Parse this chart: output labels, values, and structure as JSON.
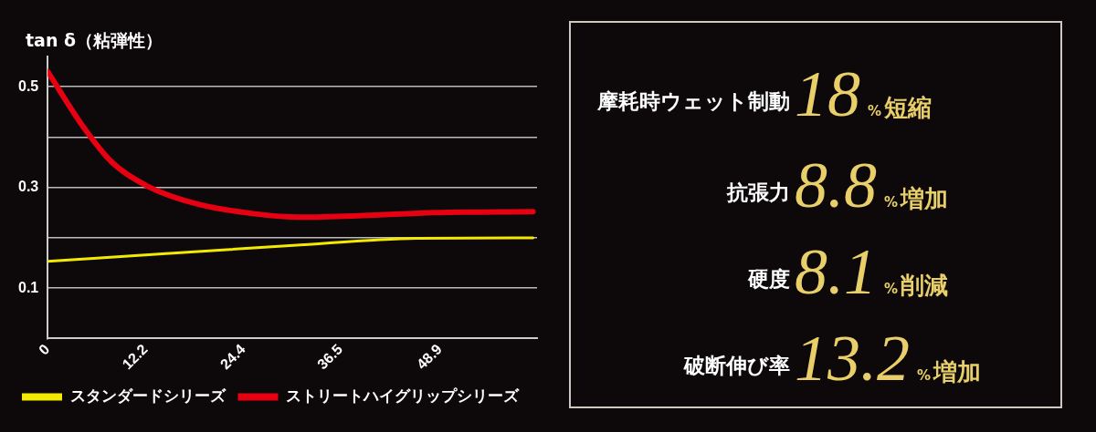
{
  "chart_data": [
    {
      "type": "line",
      "ylabel": "tan δ（粘弾性）",
      "xlim": [
        0,
        61
      ],
      "xticks": [
        0,
        12.2,
        24.4,
        36.5,
        48.9
      ],
      "ylim": [
        0,
        0.56
      ],
      "yticks": [
        0.1,
        {
          "value": 0.2,
          "label": null
        },
        0.3,
        {
          "value": 0.4,
          "label": null
        },
        0.5
      ],
      "grid": "y",
      "legend": "bottom",
      "marker": "none",
      "series": [
        {
          "name": "スタンダードシリーズ",
          "color": "#f2ea00",
          "x": [
            0,
            14.3,
            30.6,
            46,
            60.5
          ],
          "values": [
            0.153,
            0.168,
            0.185,
            0.199,
            0.2
          ]
        },
        {
          "name": "ストリートハイグリップシリーズ",
          "color": "#e60012",
          "x": [
            0,
            4.4,
            8,
            12.5,
            18.9,
            25.6,
            31.5,
            39.2,
            48.2,
            60.5
          ],
          "values": [
            0.53,
            0.421,
            0.35,
            0.302,
            0.266,
            0.248,
            0.241,
            0.244,
            0.25,
            0.252
          ]
        }
      ]
    },
    {
      "type": "other",
      "categories": [
        "摩耗時ウェット制動",
        "抗張力",
        "硬度",
        "破断伸び率"
      ],
      "values": [
        18,
        8.8,
        8.1,
        13.2
      ],
      "data_labels": true,
      "annotations": [
        "%短縮",
        "%増加",
        "%削減",
        "%増加"
      ]
    }
  ]
}
